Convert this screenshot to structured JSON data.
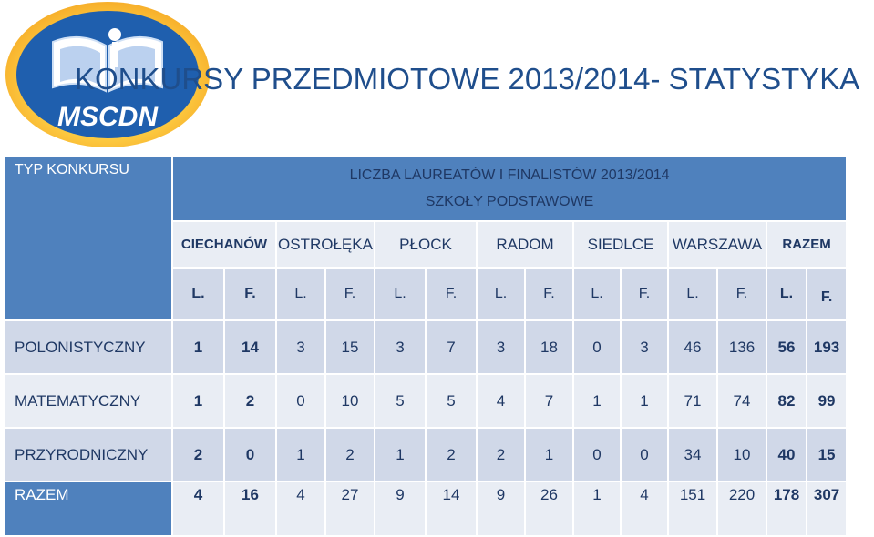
{
  "title": "KONKURSY PRZEDMIOTOWE 2013/2014- STATYSTYKA",
  "logo": {
    "text": "MSCDN",
    "icon": "open-book-logo-icon"
  },
  "table": {
    "type_header": "TYP KONKURSU",
    "main_title_1": "LICZBA LAUREATÓW I FINALISTÓW 2013/2014",
    "main_title_2": "SZKOŁY PODSTAWOWE",
    "regions": [
      "CIECHANÓW",
      "OSTROŁĘKA",
      "PŁOCK",
      "RADOM",
      "SIEDLCE",
      "WARSZAWA",
      "RAZEM"
    ],
    "subheaders": [
      "L.",
      "F.",
      "L.",
      "F.",
      "L.",
      "F.",
      "L.",
      "F.",
      "L.",
      "F.",
      "L.",
      "F.",
      "L.",
      "F."
    ],
    "rows": [
      {
        "label": "POLONISTYCZNY",
        "values": [
          "1",
          "14",
          "3",
          "15",
          "3",
          "7",
          "3",
          "18",
          "0",
          "3",
          "46",
          "136",
          "56",
          "193"
        ]
      },
      {
        "label": "MATEMATYCZNY",
        "values": [
          "1",
          "2",
          "0",
          "10",
          "5",
          "5",
          "4",
          "7",
          "1",
          "1",
          "71",
          "74",
          "82",
          "99"
        ]
      },
      {
        "label": "PRZYRODNICZNY",
        "values": [
          "2",
          "0",
          "1",
          "2",
          "1",
          "2",
          "2",
          "1",
          "0",
          "0",
          "34",
          "10",
          "40",
          "15"
        ]
      },
      {
        "label": "RAZEM",
        "values": [
          "4",
          "16",
          "4",
          "27",
          "9",
          "14",
          "9",
          "26",
          "1",
          "4",
          "151",
          "220",
          "178",
          "307"
        ]
      }
    ]
  },
  "colors": {
    "header_blue": "#4f81bd",
    "band_dark": "#d0d8e8",
    "band_light": "#e9edf4",
    "text_navy": "#1f3864",
    "title_blue": "#1f4e8c"
  }
}
